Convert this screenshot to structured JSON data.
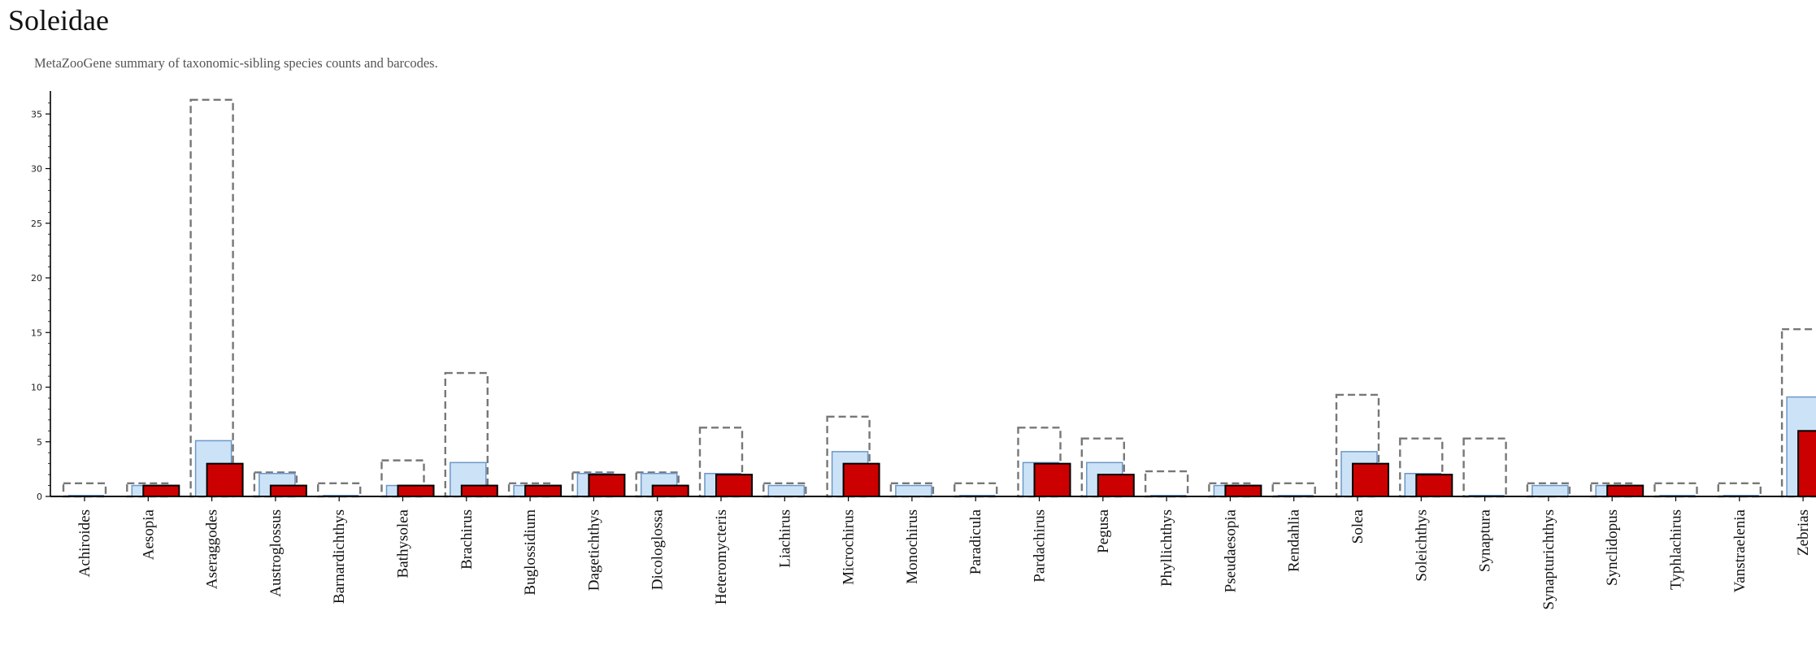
{
  "title": "Soleidae",
  "subtitle": "MetaZooGene summary of taxonomic-sibling species counts and barcodes.",
  "colors": {
    "outline": "#777777",
    "light_fill": "#cce3f7",
    "light_stroke": "#6d97c9",
    "dark_fill": "#cc0000",
    "dark_stroke": "#000000",
    "axis": "#000000"
  },
  "chart_data": {
    "type": "bar",
    "categories": [
      "Achiroides",
      "Aesopia",
      "Aseraggodes",
      "Austroglossus",
      "Barnardichthys",
      "Bathysolea",
      "Brachirus",
      "Buglossidium",
      "Dagetichthys",
      "Dicologlossa",
      "Heteromycteris",
      "Liachirus",
      "Microchirus",
      "Monochirus",
      "Paradicula",
      "Pardachirus",
      "Pegusa",
      "Phyllichthys",
      "Pseudaesopia",
      "Rendahlia",
      "Solea",
      "Soleichthys",
      "Synaptura",
      "Synapturichthys",
      "Synclidopus",
      "Typhlachirus",
      "Vanstraelenia",
      "Zebrias"
    ],
    "series": [
      {
        "style": "dashed-outline",
        "values": [
          1.2,
          1.2,
          36.3,
          2.2,
          1.2,
          3.3,
          11.3,
          1.2,
          2.2,
          2.2,
          6.3,
          1.2,
          7.3,
          1.2,
          1.2,
          6.3,
          5.3,
          2.3,
          1.2,
          1.2,
          9.3,
          5.3,
          5.3,
          1.2,
          1.2,
          1.2,
          1.2,
          15.3
        ]
      },
      {
        "style": "light-blue",
        "values": [
          0,
          1,
          5.1,
          2.1,
          0,
          1,
          3.1,
          1,
          2.1,
          2.1,
          2.1,
          1,
          4.1,
          1,
          0,
          3.1,
          3.1,
          0,
          1,
          0,
          4.1,
          2.1,
          0,
          1,
          1,
          0,
          0,
          9.1
        ]
      },
      {
        "style": "red",
        "values": [
          0,
          1,
          3,
          1,
          0,
          1,
          1,
          1,
          2,
          1,
          2,
          0,
          3,
          0,
          0,
          3,
          2,
          0,
          1,
          0,
          3,
          2,
          0,
          0,
          1,
          0,
          0,
          6
        ]
      }
    ],
    "yticks": [
      0,
      5,
      10,
      15,
      20,
      25,
      30,
      35
    ],
    "ylim": [
      0,
      37
    ],
    "grid": false
  }
}
